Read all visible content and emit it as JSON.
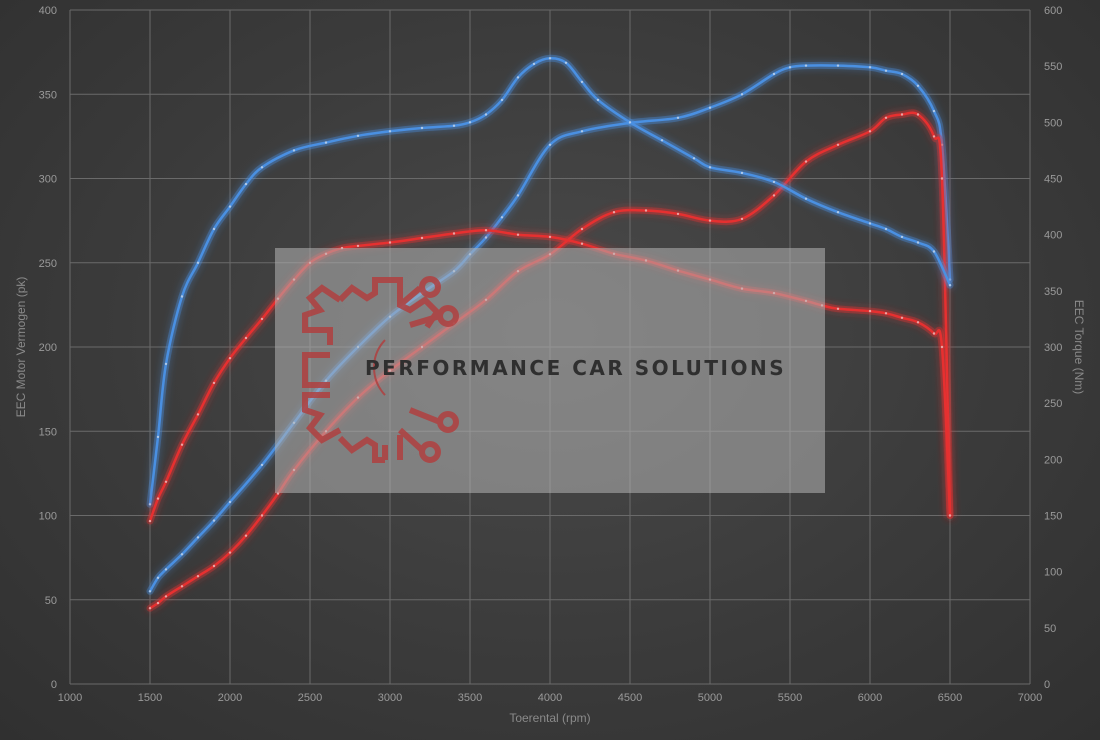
{
  "chart_data": {
    "type": "line",
    "xlabel": "Toerental (rpm)",
    "ylabel_left": "EEC Motor Vermogen (pk)",
    "ylabel_right": "EEC Torque (Nm)",
    "xlim": [
      1000,
      7000
    ],
    "ylim_left": [
      0,
      400
    ],
    "ylim_right": [
      0,
      600
    ],
    "x_ticks": [
      1000,
      1500,
      2000,
      2500,
      3000,
      3500,
      4000,
      4500,
      5000,
      5500,
      6000,
      6500,
      7000
    ],
    "y_left_ticks": [
      0,
      50,
      100,
      150,
      200,
      250,
      300,
      350,
      400
    ],
    "y_right_ticks": [
      0,
      50,
      100,
      150,
      200,
      250,
      300,
      350,
      400,
      450,
      500,
      550,
      600
    ],
    "grid": true,
    "series": [
      {
        "axis": "left",
        "color": "#4a90e2",
        "x": [
          1500,
          1550,
          1600,
          1700,
          1800,
          1900,
          2000,
          2200,
          2400,
          2600,
          2800,
          3000,
          3200,
          3400,
          3500,
          3600,
          3700,
          3800,
          4000,
          4200,
          4500,
          4800,
          5000,
          5200,
          5400,
          5500,
          5600,
          5800,
          6000,
          6100,
          6200,
          6300,
          6400,
          6450,
          6500
        ],
        "y": [
          55,
          63,
          68,
          77,
          87,
          97,
          108,
          130,
          155,
          180,
          200,
          218,
          232,
          245,
          255,
          265,
          277,
          290,
          320,
          328,
          333,
          336,
          342,
          350,
          362,
          366,
          367,
          367,
          366,
          364,
          362,
          355,
          340,
          320,
          240
        ]
      },
      {
        "axis": "left",
        "color": "#e63030",
        "x": [
          1500,
          1550,
          1600,
          1700,
          1800,
          1900,
          2000,
          2100,
          2200,
          2300,
          2400,
          2600,
          2800,
          3000,
          3200,
          3400,
          3600,
          3800,
          4000,
          4200,
          4400,
          4600,
          4800,
          5000,
          5200,
          5400,
          5600,
          5800,
          6000,
          6100,
          6200,
          6300,
          6400,
          6450,
          6500
        ],
        "y": [
          45,
          48,
          52,
          58,
          64,
          70,
          78,
          88,
          100,
          113,
          127,
          150,
          170,
          186,
          200,
          214,
          228,
          245,
          255,
          270,
          280,
          281,
          279,
          275,
          276,
          290,
          310,
          320,
          328,
          336,
          338,
          338,
          325,
          300,
          100
        ]
      },
      {
        "axis": "right",
        "color": "#4a90e2",
        "x": [
          1500,
          1550,
          1600,
          1700,
          1800,
          1900,
          2000,
          2100,
          2200,
          2400,
          2600,
          2800,
          3000,
          3200,
          3400,
          3500,
          3600,
          3700,
          3800,
          3900,
          4000,
          4100,
          4200,
          4300,
          4500,
          4700,
          4900,
          5000,
          5200,
          5400,
          5600,
          5800,
          6000,
          6100,
          6200,
          6300,
          6400,
          6500
        ],
        "y": [
          160,
          220,
          285,
          345,
          375,
          405,
          425,
          445,
          460,
          475,
          482,
          488,
          492,
          495,
          497,
          500,
          507,
          520,
          540,
          552,
          557,
          553,
          536,
          520,
          500,
          484,
          468,
          460,
          455,
          447,
          432,
          420,
          410,
          405,
          398,
          393,
          385,
          355
        ]
      },
      {
        "axis": "right",
        "color": "#e63030",
        "x": [
          1500,
          1550,
          1600,
          1700,
          1800,
          1900,
          2000,
          2100,
          2200,
          2300,
          2400,
          2500,
          2600,
          2700,
          2800,
          3000,
          3200,
          3400,
          3600,
          3800,
          4000,
          4200,
          4400,
          4600,
          4800,
          5000,
          5200,
          5400,
          5600,
          5700,
          5800,
          6000,
          6100,
          6200,
          6300,
          6400,
          6450,
          6500
        ],
        "y": [
          145,
          165,
          180,
          213,
          240,
          268,
          290,
          308,
          325,
          343,
          360,
          375,
          383,
          388,
          390,
          393,
          397,
          401,
          404,
          400,
          398,
          392,
          383,
          377,
          368,
          360,
          352,
          348,
          341,
          337,
          334,
          332,
          330,
          326,
          322,
          312,
          300,
          150
        ]
      }
    ]
  },
  "watermark": {
    "text": "PERFORMANCE CAR SOLUTIONS"
  }
}
